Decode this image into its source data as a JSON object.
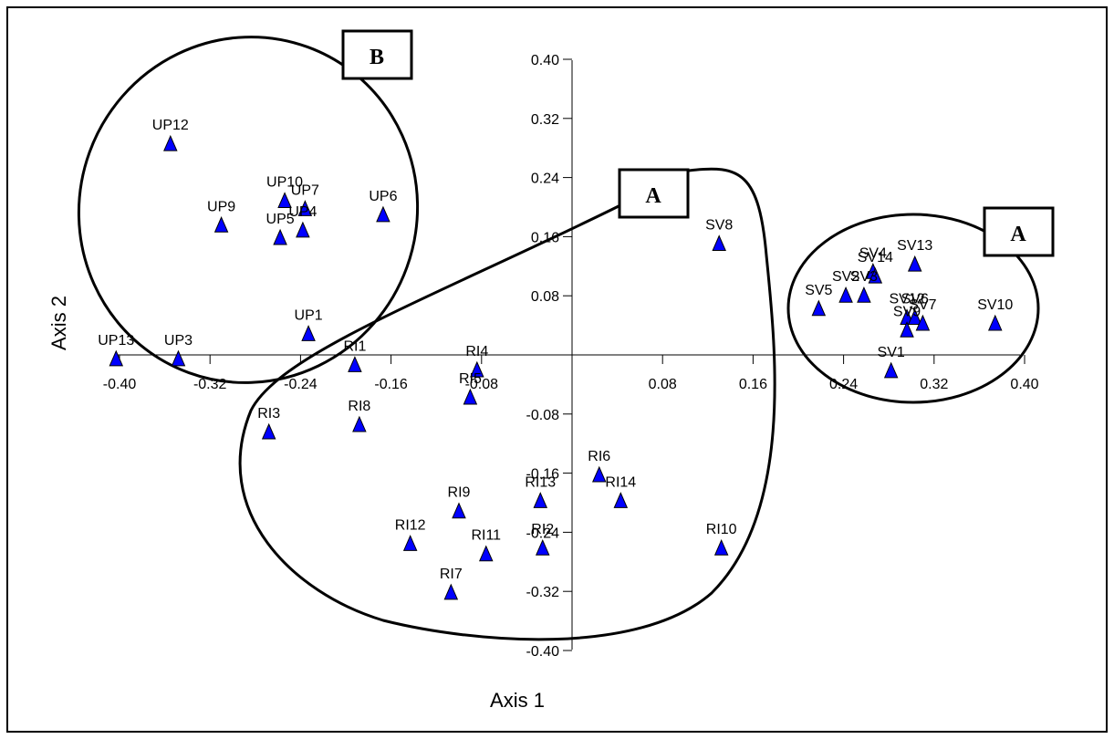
{
  "chart_data": {
    "type": "scatter",
    "xlabel": "Axis 1",
    "ylabel": "Axis 2",
    "xlim": [
      -0.4,
      0.4
    ],
    "ylim": [
      -0.4,
      0.4
    ],
    "x_ticks": [
      "-0.40",
      "-0.32",
      "-0.24",
      "-0.16",
      "-0.08",
      "0.08",
      "0.16",
      "0.24",
      "0.32",
      "0.40"
    ],
    "y_ticks": [
      "0.40",
      "0.32",
      "0.24",
      "0.16",
      "0.08",
      "-0.08",
      "-0.16",
      "-0.24",
      "-0.32",
      "-0.40"
    ],
    "marker_color": "#0000FF",
    "group_labels": [
      "B",
      "A",
      "A"
    ],
    "points": [
      {
        "label": "UP12",
        "x": -0.355,
        "y": 0.285
      },
      {
        "label": "UP10",
        "x": -0.254,
        "y": 0.208
      },
      {
        "label": "UP7",
        "x": -0.236,
        "y": 0.197
      },
      {
        "label": "UP9",
        "x": -0.31,
        "y": 0.175
      },
      {
        "label": "UP4",
        "x": -0.238,
        "y": 0.168
      },
      {
        "label": "UP5",
        "x": -0.258,
        "y": 0.158
      },
      {
        "label": "UP6",
        "x": -0.167,
        "y": 0.189
      },
      {
        "label": "UP1",
        "x": -0.233,
        "y": 0.028
      },
      {
        "label": "UP13",
        "x": -0.403,
        "y": -0.006
      },
      {
        "label": "UP3",
        "x": -0.348,
        "y": -0.006
      },
      {
        "label": "RI1",
        "x": -0.192,
        "y": -0.014
      },
      {
        "label": "RI4",
        "x": -0.084,
        "y": -0.021
      },
      {
        "label": "RI5",
        "x": -0.09,
        "y": -0.058
      },
      {
        "label": "RI8",
        "x": -0.188,
        "y": -0.095
      },
      {
        "label": "RI3",
        "x": -0.268,
        "y": -0.105
      },
      {
        "label": "RI6",
        "x": 0.024,
        "y": -0.163
      },
      {
        "label": "RI13",
        "x": -0.028,
        "y": -0.198
      },
      {
        "label": "RI14",
        "x": 0.043,
        "y": -0.198
      },
      {
        "label": "RI9",
        "x": -0.1,
        "y": -0.212
      },
      {
        "label": "RI12",
        "x": -0.143,
        "y": -0.256
      },
      {
        "label": "RI11",
        "x": -0.076,
        "y": -0.27
      },
      {
        "label": "RI2",
        "x": -0.026,
        "y": -0.262
      },
      {
        "label": "RI10",
        "x": 0.132,
        "y": -0.262
      },
      {
        "label": "RI7",
        "x": -0.107,
        "y": -0.322
      },
      {
        "label": "SV8",
        "x": 0.13,
        "y": 0.15
      },
      {
        "label": "SV13",
        "x": 0.303,
        "y": 0.122
      },
      {
        "label": "SV4",
        "x": 0.266,
        "y": 0.112
      },
      {
        "label": "SV14",
        "x": 0.268,
        "y": 0.106
      },
      {
        "label": "SV2",
        "x": 0.242,
        "y": 0.08
      },
      {
        "label": "SV3",
        "x": 0.258,
        "y": 0.08
      },
      {
        "label": "SV5",
        "x": 0.218,
        "y": 0.062
      },
      {
        "label": "SV12",
        "x": 0.296,
        "y": 0.05
      },
      {
        "label": "SV6",
        "x": 0.303,
        "y": 0.05
      },
      {
        "label": "SV7",
        "x": 0.31,
        "y": 0.042
      },
      {
        "label": "SV9",
        "x": 0.296,
        "y": 0.033
      },
      {
        "label": "SV10",
        "x": 0.374,
        "y": 0.042
      },
      {
        "label": "SV1",
        "x": 0.282,
        "y": -0.022
      }
    ]
  }
}
